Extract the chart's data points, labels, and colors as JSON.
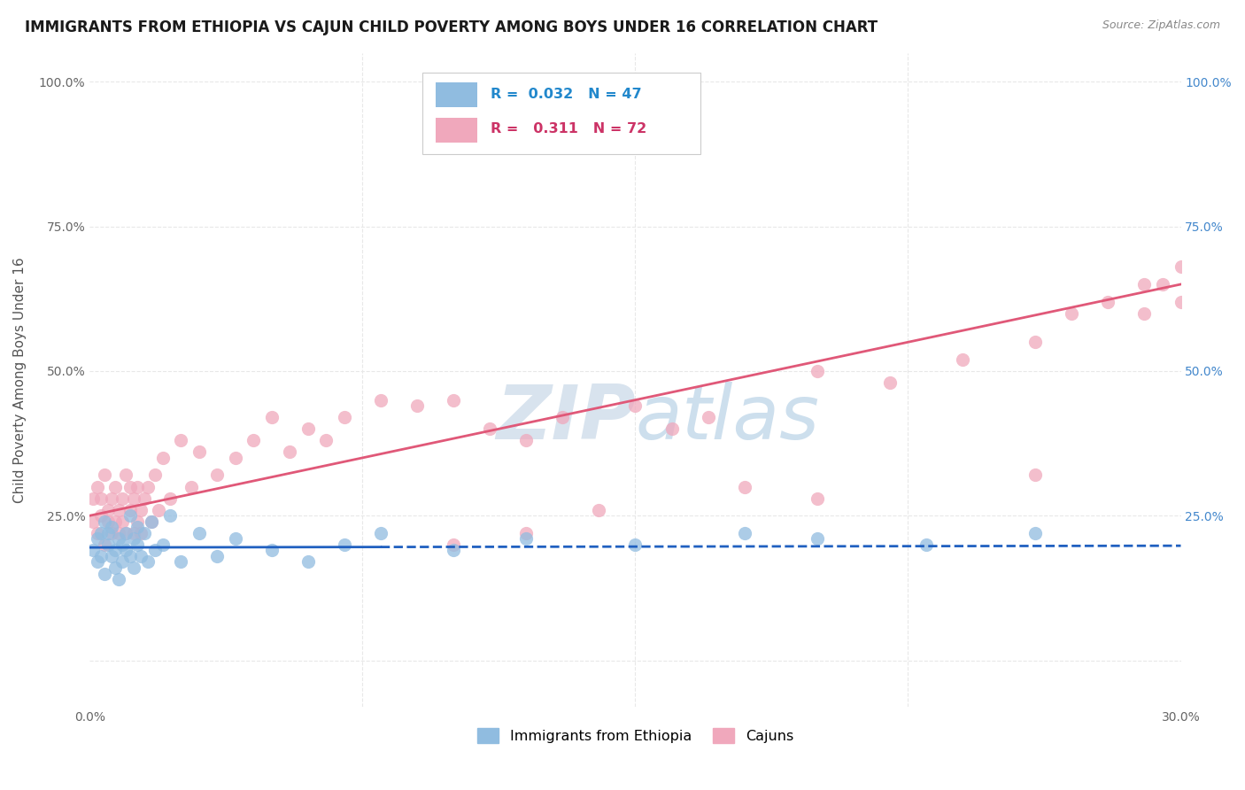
{
  "title": "IMMIGRANTS FROM ETHIOPIA VS CAJUN CHILD POVERTY AMONG BOYS UNDER 16 CORRELATION CHART",
  "source": "Source: ZipAtlas.com",
  "ylabel": "Child Poverty Among Boys Under 16",
  "legend_items": [
    {
      "label": "Immigrants from Ethiopia",
      "color": "#a8c8e8",
      "R": "0.032",
      "N": "47"
    },
    {
      "label": "Cajuns",
      "color": "#f4afc0",
      "R": "0.311",
      "N": "72"
    }
  ],
  "x_min": 0.0,
  "x_max": 0.3,
  "y_min": -0.08,
  "y_max": 1.05,
  "y_ticks": [
    0.0,
    0.25,
    0.5,
    0.75,
    1.0
  ],
  "y_tick_labels_left": [
    "",
    "25.0%",
    "50.0%",
    "75.0%",
    "100.0%"
  ],
  "y_tick_labels_right": [
    "",
    "25.0%",
    "50.0%",
    "75.0%",
    "100.0%"
  ],
  "x_ticks": [
    0.0,
    0.3
  ],
  "x_tick_labels": [
    "0.0%",
    "30.0%"
  ],
  "grid_color": "#e8e8e8",
  "watermark_color": "#c8d8e8",
  "blue_scatter_color": "#90bce0",
  "pink_scatter_color": "#f0a8bc",
  "blue_line_color": "#2060c0",
  "pink_line_color": "#e05878",
  "blue_line_solid_end": 0.08,
  "blue_line_intercept": 0.195,
  "blue_line_slope": 0.01,
  "pink_line_intercept": 0.25,
  "pink_line_slope": 1.333,
  "blue_scatter_x": [
    0.001,
    0.002,
    0.002,
    0.003,
    0.003,
    0.004,
    0.004,
    0.005,
    0.005,
    0.006,
    0.006,
    0.007,
    0.007,
    0.008,
    0.008,
    0.009,
    0.009,
    0.01,
    0.01,
    0.011,
    0.011,
    0.012,
    0.012,
    0.013,
    0.013,
    0.014,
    0.015,
    0.016,
    0.017,
    0.018,
    0.02,
    0.022,
    0.025,
    0.03,
    0.035,
    0.04,
    0.05,
    0.06,
    0.07,
    0.08,
    0.1,
    0.12,
    0.15,
    0.18,
    0.2,
    0.23,
    0.26
  ],
  "blue_scatter_y": [
    0.19,
    0.21,
    0.17,
    0.22,
    0.18,
    0.24,
    0.15,
    0.2,
    0.22,
    0.18,
    0.23,
    0.16,
    0.19,
    0.21,
    0.14,
    0.2,
    0.17,
    0.22,
    0.19,
    0.25,
    0.18,
    0.21,
    0.16,
    0.23,
    0.2,
    0.18,
    0.22,
    0.17,
    0.24,
    0.19,
    0.2,
    0.25,
    0.17,
    0.22,
    0.18,
    0.21,
    0.19,
    0.17,
    0.2,
    0.22,
    0.19,
    0.21,
    0.2,
    0.22,
    0.21,
    0.2,
    0.22
  ],
  "pink_scatter_x": [
    0.001,
    0.001,
    0.002,
    0.002,
    0.003,
    0.003,
    0.004,
    0.004,
    0.005,
    0.005,
    0.006,
    0.006,
    0.007,
    0.007,
    0.008,
    0.008,
    0.009,
    0.009,
    0.01,
    0.01,
    0.011,
    0.011,
    0.012,
    0.012,
    0.013,
    0.013,
    0.014,
    0.014,
    0.015,
    0.016,
    0.017,
    0.018,
    0.019,
    0.02,
    0.022,
    0.025,
    0.028,
    0.03,
    0.035,
    0.04,
    0.045,
    0.05,
    0.055,
    0.06,
    0.065,
    0.07,
    0.08,
    0.09,
    0.1,
    0.11,
    0.12,
    0.13,
    0.15,
    0.16,
    0.17,
    0.2,
    0.22,
    0.24,
    0.26,
    0.27,
    0.28,
    0.29,
    0.295,
    0.3,
    0.3,
    0.29,
    0.26,
    0.2,
    0.18,
    0.14,
    0.12,
    0.1
  ],
  "pink_scatter_y": [
    0.24,
    0.28,
    0.22,
    0.3,
    0.25,
    0.28,
    0.2,
    0.32,
    0.24,
    0.26,
    0.28,
    0.22,
    0.3,
    0.24,
    0.26,
    0.22,
    0.28,
    0.24,
    0.32,
    0.22,
    0.26,
    0.3,
    0.22,
    0.28,
    0.24,
    0.3,
    0.22,
    0.26,
    0.28,
    0.3,
    0.24,
    0.32,
    0.26,
    0.35,
    0.28,
    0.38,
    0.3,
    0.36,
    0.32,
    0.35,
    0.38,
    0.42,
    0.36,
    0.4,
    0.38,
    0.42,
    0.45,
    0.44,
    0.45,
    0.4,
    0.38,
    0.42,
    0.44,
    0.4,
    0.42,
    0.5,
    0.48,
    0.52,
    0.55,
    0.6,
    0.62,
    0.65,
    0.65,
    0.68,
    0.62,
    0.6,
    0.32,
    0.28,
    0.3,
    0.26,
    0.22,
    0.2
  ]
}
